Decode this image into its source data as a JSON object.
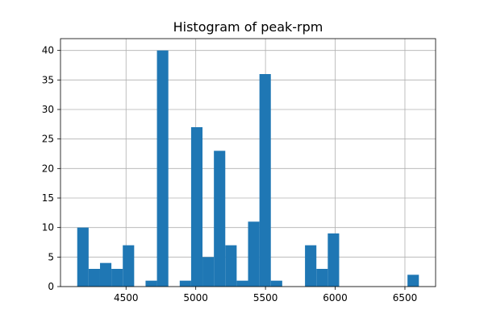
{
  "chart_data": {
    "type": "bar",
    "title": "Histogram of peak-rpm",
    "xlabel": "",
    "ylabel": "",
    "bar_color": "#1f77b4",
    "grid": true,
    "xlim": [
      4030,
      6720
    ],
    "ylim": [
      0,
      42
    ],
    "x_ticks": [
      4500,
      5000,
      5500,
      6000,
      6500
    ],
    "y_ticks": [
      0,
      5,
      10,
      15,
      20,
      25,
      30,
      35,
      40
    ],
    "bin_start": 4150,
    "bin_width": 81.67,
    "counts": [
      10,
      3,
      4,
      3,
      7,
      0,
      1,
      40,
      0,
      1,
      27,
      5,
      23,
      7,
      1,
      11,
      36,
      1,
      0,
      0,
      7,
      3,
      9,
      0,
      0,
      0,
      0,
      0,
      0,
      2
    ]
  }
}
